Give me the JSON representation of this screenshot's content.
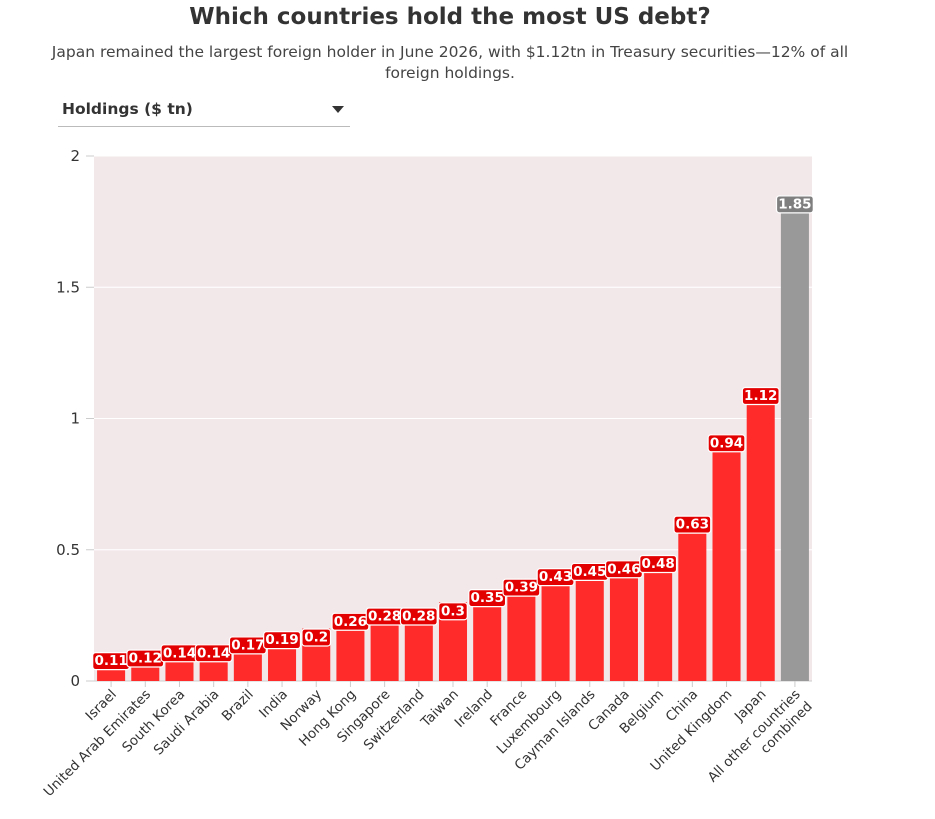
{
  "header": {
    "title": "Which countries hold the most US debt?",
    "subtitle": "Japan remained the largest foreign holder in June 2026, with $1.12tn in Treasury securities—12% of all foreign holdings."
  },
  "dropdown": {
    "selected": "Holdings ($ tn)"
  },
  "colors": {
    "bar": "#ff2a2a",
    "other_bar": "#999999",
    "plot_background": "#f2e8ea",
    "label_bg_red": "#e30000",
    "label_bg_grey": "#7f7f7f"
  },
  "chart_data": {
    "type": "bar",
    "categories": [
      "Israel",
      "United Arab Emirates",
      "South Korea",
      "Saudi Arabia",
      "Brazil",
      "India",
      "Norway",
      "Hong Kong",
      "Singapore",
      "Switzerland",
      "Taiwan",
      "Ireland",
      "France",
      "Luxembourg",
      "Cayman Islands",
      "Canada",
      "Belgium",
      "China",
      "United Kingdom",
      "Japan",
      "All other countries combined"
    ],
    "values": [
      0.11,
      0.12,
      0.14,
      0.14,
      0.17,
      0.19,
      0.2,
      0.26,
      0.28,
      0.28,
      0.3,
      0.35,
      0.39,
      0.43,
      0.45,
      0.46,
      0.48,
      0.63,
      0.94,
      1.12,
      1.85
    ],
    "data_labels": [
      "0.11",
      "0.12",
      "0.14",
      "0.14",
      "0.17",
      "0.19",
      "0.2",
      "0.26",
      "0.28",
      "0.28",
      "0.3",
      "0.35",
      "0.39",
      "0.43",
      "0.45",
      "0.46",
      "0.48",
      "0.63",
      "0.94",
      "1.12",
      "1.85"
    ],
    "highlight_category": "All other countries combined",
    "ylim": [
      0,
      2
    ],
    "yticks": [
      0,
      0.5,
      1,
      1.5,
      2
    ],
    "ytick_labels": [
      "0",
      "0.5",
      "1",
      "1.5",
      "2"
    ],
    "xlabel": "",
    "ylabel": "",
    "grid": true
  }
}
